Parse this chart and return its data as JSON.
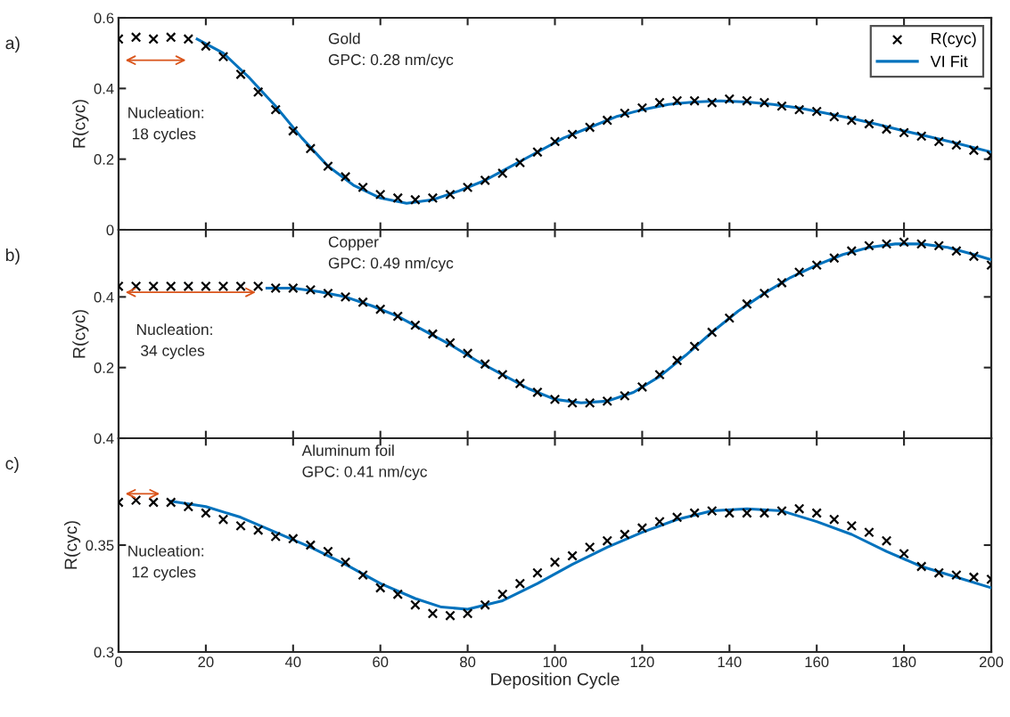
{
  "chart_data": [
    {
      "type": "scatter",
      "title": "a)",
      "ylabel": "R(cyc)",
      "xlim": [
        0,
        200
      ],
      "ylim": [
        0,
        0.6
      ],
      "xticks": [
        0,
        20,
        40,
        60,
        80,
        100,
        120,
        140,
        160,
        180,
        200
      ],
      "yticks": [
        0,
        0.2,
        0.4,
        0.6
      ],
      "tick_labels": "y",
      "legend": "top right",
      "grid": false,
      "annotations": [
        "Gold\nGPC: 0.28 nm/cyc",
        "Nucleation:\n 18 cycles"
      ],
      "series": [
        {
          "name": "R(cyc)",
          "marker": "cross",
          "color": "#000000",
          "x": [
            0,
            4,
            8,
            12,
            16,
            20,
            24,
            28,
            32,
            36,
            40,
            44,
            48,
            52,
            56,
            60,
            64,
            68,
            72,
            76,
            80,
            84,
            88,
            92,
            96,
            100,
            104,
            108,
            112,
            116,
            120,
            124,
            128,
            132,
            136,
            140,
            144,
            148,
            152,
            156,
            160,
            164,
            168,
            172,
            176,
            180,
            184,
            188,
            192,
            196,
            200
          ],
          "values": [
            0.54,
            0.545,
            0.54,
            0.545,
            0.54,
            0.52,
            0.49,
            0.44,
            0.39,
            0.34,
            0.28,
            0.23,
            0.18,
            0.15,
            0.12,
            0.1,
            0.09,
            0.085,
            0.09,
            0.1,
            0.12,
            0.14,
            0.16,
            0.19,
            0.22,
            0.25,
            0.27,
            0.29,
            0.31,
            0.33,
            0.345,
            0.36,
            0.365,
            0.365,
            0.36,
            0.37,
            0.365,
            0.36,
            0.35,
            0.34,
            0.335,
            0.32,
            0.31,
            0.3,
            0.285,
            0.275,
            0.265,
            0.25,
            0.24,
            0.225,
            0.21
          ]
        },
        {
          "name": "VI Fit",
          "type": "line",
          "color": "#0072bd",
          "x": [
            18,
            24,
            30,
            36,
            42,
            48,
            54,
            60,
            66,
            72,
            78,
            84,
            90,
            96,
            102,
            108,
            114,
            120,
            126,
            132,
            138,
            144,
            150,
            156,
            162,
            168,
            174,
            180,
            186,
            192,
            200
          ],
          "values": [
            0.54,
            0.5,
            0.43,
            0.35,
            0.26,
            0.18,
            0.125,
            0.09,
            0.075,
            0.085,
            0.11,
            0.14,
            0.18,
            0.22,
            0.26,
            0.29,
            0.32,
            0.34,
            0.355,
            0.362,
            0.365,
            0.362,
            0.355,
            0.345,
            0.33,
            0.315,
            0.298,
            0.28,
            0.263,
            0.245,
            0.22
          ]
        }
      ]
    },
    {
      "type": "scatter",
      "title": "b)",
      "ylabel": "R(cyc)",
      "xlim": [
        0,
        200
      ],
      "ylim": [
        0,
        0.59
      ],
      "xticks": [
        0,
        20,
        40,
        60,
        80,
        100,
        120,
        140,
        160,
        180,
        200
      ],
      "yticks": [
        0.2,
        0.4
      ],
      "tick_labels": "y",
      "grid": false,
      "annotations": [
        "Copper\nGPC: 0.49 nm/cyc",
        "Nucleation:\n 34 cycles"
      ],
      "series": [
        {
          "marker": "cross",
          "color": "#000000",
          "x": [
            0,
            4,
            8,
            12,
            16,
            20,
            24,
            28,
            32,
            36,
            40,
            44,
            48,
            52,
            56,
            60,
            64,
            68,
            72,
            76,
            80,
            84,
            88,
            92,
            96,
            100,
            104,
            108,
            112,
            116,
            120,
            124,
            128,
            132,
            136,
            140,
            144,
            148,
            152,
            156,
            160,
            164,
            168,
            172,
            176,
            180,
            184,
            188,
            192,
            196,
            200
          ],
          "values": [
            0.43,
            0.43,
            0.43,
            0.43,
            0.43,
            0.43,
            0.43,
            0.43,
            0.43,
            0.425,
            0.425,
            0.42,
            0.41,
            0.4,
            0.385,
            0.365,
            0.345,
            0.32,
            0.295,
            0.27,
            0.24,
            0.21,
            0.18,
            0.155,
            0.13,
            0.11,
            0.1,
            0.1,
            0.105,
            0.12,
            0.145,
            0.18,
            0.22,
            0.26,
            0.3,
            0.34,
            0.38,
            0.41,
            0.44,
            0.47,
            0.49,
            0.51,
            0.53,
            0.545,
            0.55,
            0.555,
            0.55,
            0.545,
            0.53,
            0.515,
            0.49
          ]
        },
        {
          "type": "line",
          "color": "#0072bd",
          "x": [
            34,
            40,
            46,
            52,
            58,
            64,
            70,
            76,
            82,
            88,
            94,
            100,
            106,
            112,
            118,
            124,
            130,
            136,
            142,
            148,
            154,
            160,
            166,
            172,
            178,
            184,
            190,
            196,
            200
          ],
          "values": [
            0.425,
            0.425,
            0.415,
            0.4,
            0.375,
            0.345,
            0.305,
            0.265,
            0.22,
            0.18,
            0.14,
            0.11,
            0.1,
            0.105,
            0.13,
            0.175,
            0.235,
            0.3,
            0.36,
            0.41,
            0.455,
            0.49,
            0.52,
            0.54,
            0.55,
            0.55,
            0.54,
            0.52,
            0.505
          ]
        }
      ]
    },
    {
      "type": "scatter",
      "title": "c)",
      "ylabel": "R(cyc)",
      "xlabel": "Deposition Cycle",
      "xlim": [
        0,
        200
      ],
      "ylim": [
        0.3,
        0.4
      ],
      "xticks": [
        0,
        20,
        40,
        60,
        80,
        100,
        120,
        140,
        160,
        180,
        200
      ],
      "yticks": [
        0.3,
        0.35,
        0.4
      ],
      "grid": false,
      "annotations": [
        "Aluminum foil\nGPC: 0.41 nm/cyc",
        "Nucleation:\n 12 cycles"
      ],
      "series": [
        {
          "marker": "cross",
          "color": "#000000",
          "x": [
            0,
            4,
            8,
            12,
            16,
            20,
            24,
            28,
            32,
            36,
            40,
            44,
            48,
            52,
            56,
            60,
            64,
            68,
            72,
            76,
            80,
            84,
            88,
            92,
            96,
            100,
            104,
            108,
            112,
            116,
            120,
            124,
            128,
            132,
            136,
            140,
            144,
            148,
            152,
            156,
            160,
            164,
            168,
            172,
            176,
            180,
            184,
            188,
            192,
            196,
            200
          ],
          "values": [
            0.37,
            0.371,
            0.37,
            0.37,
            0.368,
            0.365,
            0.362,
            0.359,
            0.357,
            0.354,
            0.353,
            0.35,
            0.347,
            0.342,
            0.336,
            0.33,
            0.327,
            0.322,
            0.318,
            0.317,
            0.318,
            0.322,
            0.327,
            0.332,
            0.337,
            0.342,
            0.345,
            0.349,
            0.352,
            0.355,
            0.358,
            0.361,
            0.363,
            0.365,
            0.366,
            0.365,
            0.365,
            0.365,
            0.366,
            0.367,
            0.365,
            0.362,
            0.359,
            0.356,
            0.352,
            0.346,
            0.34,
            0.337,
            0.336,
            0.335,
            0.334
          ]
        },
        {
          "type": "line",
          "color": "#0072bd",
          "x": [
            12,
            20,
            28,
            36,
            44,
            52,
            60,
            68,
            74,
            80,
            88,
            96,
            104,
            112,
            120,
            128,
            136,
            144,
            152,
            160,
            168,
            176,
            184,
            192,
            200
          ],
          "values": [
            0.3705,
            0.368,
            0.363,
            0.356,
            0.349,
            0.341,
            0.332,
            0.325,
            0.321,
            0.32,
            0.324,
            0.332,
            0.341,
            0.349,
            0.356,
            0.362,
            0.366,
            0.367,
            0.366,
            0.361,
            0.355,
            0.347,
            0.34,
            0.335,
            0.33
          ]
        }
      ]
    }
  ]
}
